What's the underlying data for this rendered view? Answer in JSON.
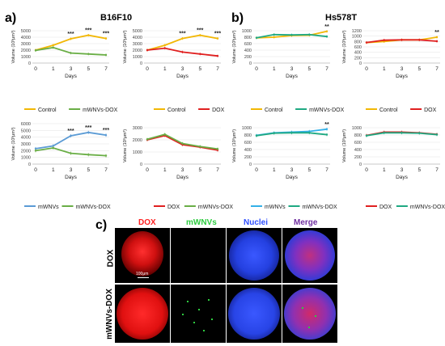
{
  "panels": {
    "a_letter": "a)",
    "b_letter": "b)",
    "c_letter": "c)",
    "a_title": "B16F10",
    "b_title": "Hs578T"
  },
  "colors": {
    "control": "#f2b705",
    "mwnvs_dox": "#6aae46",
    "dox": "#e02020",
    "mwnvs": "#5b9bd5",
    "mwnvs_dox_b": "#1fa982",
    "mwnvs_b": "#33b0e8",
    "dox_red_channel": "#ff2020",
    "mwnvs_green_channel": "#2ecc40",
    "nuclei_blue_channel": "#3050ff",
    "merge_purple": "#7030a0"
  },
  "chart_data": [
    {
      "id": "a1",
      "type": "line",
      "x": [
        "0",
        "1",
        "3",
        "5",
        "7"
      ],
      "xlabel": "Days",
      "ylabel": "Volume (10³μm³)",
      "ylim": [
        0,
        5000
      ],
      "yticks": [
        "0",
        "1000",
        "2000",
        "3000",
        "4000",
        "5000"
      ],
      "series": [
        {
          "name": "Control",
          "color_key": "control",
          "values": [
            2000,
            2750,
            3750,
            4300,
            3800
          ]
        },
        {
          "name": "mWNVs-DOX",
          "color_key": "mwnvs_dox",
          "values": [
            1950,
            2400,
            1550,
            1400,
            1250
          ]
        }
      ],
      "annotations": [
        {
          "x_index": 2,
          "text": "***"
        },
        {
          "x_index": 3,
          "text": "***"
        },
        {
          "x_index": 4,
          "text": "***"
        }
      ]
    },
    {
      "id": "a2",
      "type": "line",
      "x": [
        "0",
        "1",
        "3",
        "5",
        "7"
      ],
      "xlabel": "Days",
      "ylabel": "Volume (10³μm³)",
      "ylim": [
        0,
        5000
      ],
      "yticks": [
        "0",
        "1000",
        "2000",
        "3000",
        "4000",
        "5000"
      ],
      "series": [
        {
          "name": "Control",
          "color_key": "control",
          "values": [
            2000,
            2750,
            3800,
            4300,
            3800
          ]
        },
        {
          "name": "DOX",
          "color_key": "dox",
          "values": [
            2000,
            2300,
            1700,
            1400,
            1100
          ]
        }
      ],
      "annotations": [
        {
          "x_index": 2,
          "text": "***"
        },
        {
          "x_index": 3,
          "text": "***"
        },
        {
          "x_index": 4,
          "text": "***"
        }
      ]
    },
    {
      "id": "a3",
      "type": "line",
      "x": [
        "0",
        "1",
        "3",
        "5",
        "7"
      ],
      "xlabel": "Days",
      "ylabel": "Volume (10³μm³)",
      "ylim": [
        0,
        6000
      ],
      "yticks": [
        "0",
        "1000",
        "2000",
        "3000",
        "4000",
        "5000",
        "6000"
      ],
      "series": [
        {
          "name": "mWNVs",
          "color_key": "mwnvs",
          "values": [
            2300,
            2700,
            4200,
            4700,
            4300
          ]
        },
        {
          "name": "mWNVs-DOX",
          "color_key": "mwnvs_dox",
          "values": [
            2000,
            2400,
            1600,
            1400,
            1250
          ]
        }
      ],
      "annotations": [
        {
          "x_index": 2,
          "text": "***"
        },
        {
          "x_index": 3,
          "text": "***"
        },
        {
          "x_index": 4,
          "text": "***"
        }
      ]
    },
    {
      "id": "a4",
      "type": "line",
      "x": [
        "0",
        "1",
        "3",
        "5",
        "7"
      ],
      "xlabel": "Days",
      "ylabel": "Volume (10³μm³)",
      "ylim": [
        0,
        3000
      ],
      "yticks": [
        "0",
        "1000",
        "2000",
        "3000"
      ],
      "series": [
        {
          "name": "DOX",
          "color_key": "dox",
          "values": [
            2000,
            2350,
            1600,
            1400,
            1150
          ]
        },
        {
          "name": "mWNVs-DOX",
          "color_key": "mwnvs_dox",
          "values": [
            2050,
            2450,
            1700,
            1450,
            1250
          ]
        }
      ],
      "annotations": []
    },
    {
      "id": "b1",
      "type": "line",
      "x": [
        "0",
        "1",
        "3",
        "5",
        "7"
      ],
      "xlabel": "Days",
      "ylabel": "Volume (10³μm³)",
      "ylim": [
        0,
        1000
      ],
      "yticks": [
        "0",
        "200",
        "400",
        "600",
        "800",
        "1000"
      ],
      "series": [
        {
          "name": "Control",
          "color_key": "control",
          "values": [
            780,
            800,
            850,
            860,
            980
          ]
        },
        {
          "name": "mWNVs-DOX",
          "color_key": "mwnvs_dox_b",
          "values": [
            780,
            880,
            870,
            880,
            820
          ]
        }
      ],
      "annotations": [
        {
          "x_index": 4,
          "text": "**"
        }
      ]
    },
    {
      "id": "b2",
      "type": "line",
      "x": [
        "0",
        "1",
        "3",
        "5",
        "7"
      ],
      "xlabel": "Days",
      "ylabel": "Volume (10³μm³)",
      "ylim": [
        0,
        1200
      ],
      "yticks": [
        "0",
        "200",
        "400",
        "600",
        "800",
        "1000",
        "1200"
      ],
      "series": [
        {
          "name": "Control",
          "color_key": "control",
          "values": [
            760,
            800,
            860,
            860,
            960
          ]
        },
        {
          "name": "DOX",
          "color_key": "dox",
          "values": [
            760,
            850,
            860,
            860,
            810
          ]
        }
      ],
      "annotations": [
        {
          "x_index": 4,
          "text": "**"
        }
      ]
    },
    {
      "id": "b3",
      "type": "line",
      "x": [
        "0",
        "1",
        "3",
        "5",
        "7"
      ],
      "xlabel": "Days",
      "ylabel": "Volume (10³μm³)",
      "ylim": [
        0,
        1000
      ],
      "yticks": [
        "0",
        "200",
        "400",
        "600",
        "800",
        "1000"
      ],
      "series": [
        {
          "name": "mWNVs",
          "color_key": "mwnvs_b",
          "values": [
            790,
            860,
            880,
            900,
            960
          ]
        },
        {
          "name": "mWNVs-DOX",
          "color_key": "mwnvs_dox_b",
          "values": [
            780,
            850,
            860,
            860,
            810
          ]
        }
      ],
      "annotations": [
        {
          "x_index": 4,
          "text": "**"
        }
      ]
    },
    {
      "id": "b4",
      "type": "line",
      "x": [
        "0",
        "1",
        "3",
        "5",
        "7"
      ],
      "xlabel": "Days",
      "ylabel": "Volume (10³μm³)",
      "ylim": [
        0,
        1000
      ],
      "yticks": [
        "0",
        "200",
        "400",
        "600",
        "800",
        "1000"
      ],
      "series": [
        {
          "name": "DOX",
          "color_key": "dox",
          "values": [
            790,
            880,
            880,
            860,
            820
          ]
        },
        {
          "name": "mWNVs-DOX",
          "color_key": "mwnvs_dox_b",
          "values": [
            780,
            860,
            860,
            850,
            810
          ]
        }
      ],
      "annotations": []
    }
  ],
  "microscopy": {
    "column_labels": [
      "DOX",
      "mWNVs",
      "Nuclei",
      "Merge"
    ],
    "row_labels": [
      "DOX",
      "mWNVs-DOX"
    ],
    "scale_bar": "100μm"
  }
}
